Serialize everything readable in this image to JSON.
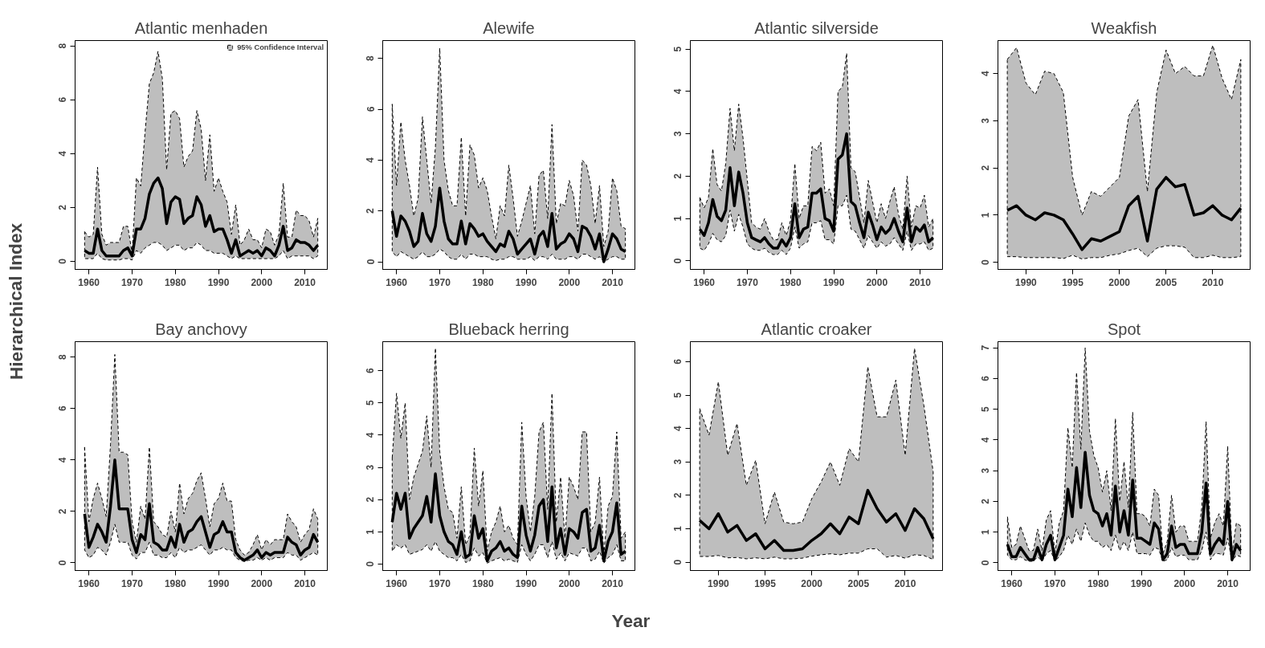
{
  "chart_data": [
    {
      "type": "line",
      "title": "Atlantic menhaden",
      "ylabel": "Hierarchical Index",
      "legend": "top right",
      "grid": false,
      "x": [
        1959,
        1960,
        1961,
        1962,
        1963,
        1964,
        1965,
        1966,
        1967,
        1968,
        1969,
        1970,
        1971,
        1972,
        1973,
        1974,
        1975,
        1976,
        1977,
        1978,
        1979,
        1980,
        1981,
        1982,
        1983,
        1984,
        1985,
        1986,
        1987,
        1988,
        1989,
        1990,
        1991,
        1992,
        1993,
        1994,
        1995,
        1996,
        1997,
        1998,
        1999,
        2000,
        2001,
        2002,
        2003,
        2004,
        2005,
        2006,
        2007,
        2008,
        2009,
        2010,
        2011,
        2012,
        2013
      ],
      "xlim": [
        1956.8,
        2015.2
      ],
      "xticks": [
        1960,
        1970,
        1980,
        1990,
        2000,
        2010
      ],
      "ylim": [
        -0.3,
        8.2
      ],
      "yticks": [
        0,
        2,
        4,
        6,
        8
      ],
      "series": [
        {
          "name": "95% Confidence Interval",
          "color": "#000000",
          "values": [
            0.4,
            0.3,
            0.3,
            1.2,
            0.4,
            0.2,
            0.2,
            0.2,
            0.2,
            0.4,
            0.5,
            0.2,
            1.2,
            1.2,
            1.6,
            2.5,
            2.9,
            3.1,
            2.7,
            1.4,
            2.2,
            2.4,
            2.3,
            1.4,
            1.6,
            1.7,
            2.4,
            2.1,
            1.3,
            1.7,
            1.1,
            1.2,
            1.2,
            0.8,
            0.3,
            0.8,
            0.2,
            0.3,
            0.4,
            0.3,
            0.4,
            0.2,
            0.5,
            0.4,
            0.2,
            0.6,
            1.3,
            0.4,
            0.5,
            0.8,
            0.7,
            0.7,
            0.6,
            0.4,
            0.6
          ],
          "upper": [
            1.1,
            0.9,
            1.0,
            3.5,
            1.0,
            0.6,
            0.7,
            0.7,
            0.7,
            1.3,
            1.3,
            0.3,
            3.1,
            2.8,
            4.8,
            6.6,
            7.0,
            7.8,
            6.8,
            3.4,
            5.5,
            5.6,
            5.3,
            3.5,
            3.9,
            4.1,
            5.6,
            4.9,
            3.0,
            4.7,
            2.6,
            3.1,
            2.6,
            2.2,
            1.0,
            2.1,
            0.6,
            0.8,
            1.2,
            0.8,
            0.8,
            0.5,
            1.2,
            1.1,
            0.6,
            1.0,
            2.9,
            0.9,
            0.9,
            1.9,
            1.7,
            1.7,
            1.5,
            0.9,
            1.6
          ],
          "lower": [
            0.1,
            0.1,
            0.1,
            0.3,
            0.1,
            0.05,
            0.05,
            0.05,
            0.05,
            0.1,
            0.1,
            0.05,
            0.4,
            0.3,
            0.5,
            0.6,
            0.7,
            0.7,
            0.6,
            0.4,
            0.5,
            0.6,
            0.6,
            0.4,
            0.5,
            0.5,
            0.7,
            0.6,
            0.4,
            0.4,
            0.3,
            0.3,
            0.3,
            0.2,
            0.1,
            0.2,
            0.1,
            0.1,
            0.1,
            0.1,
            0.1,
            0.1,
            0.1,
            0.1,
            0.1,
            0.2,
            0.4,
            0.1,
            0.2,
            0.2,
            0.2,
            0.2,
            0.2,
            0.1,
            0.2
          ]
        }
      ]
    },
    {
      "type": "line",
      "title": "Alewife",
      "grid": false,
      "x": [
        1959,
        1960,
        1961,
        1962,
        1963,
        1964,
        1965,
        1966,
        1967,
        1968,
        1969,
        1970,
        1971,
        1972,
        1973,
        1974,
        1975,
        1976,
        1977,
        1978,
        1979,
        1980,
        1981,
        1982,
        1983,
        1984,
        1985,
        1986,
        1987,
        1988,
        1989,
        1990,
        1991,
        1992,
        1993,
        1994,
        1995,
        1996,
        1997,
        1998,
        1999,
        2000,
        2001,
        2002,
        2003,
        2004,
        2005,
        2006,
        2007,
        2008,
        2009,
        2010,
        2011,
        2012,
        2013
      ],
      "xlim": [
        1956.8,
        2015.2
      ],
      "xticks": [
        1960,
        1970,
        1980,
        1990,
        2000,
        2010
      ],
      "ylim": [
        -0.3,
        8.7
      ],
      "yticks": [
        0,
        2,
        4,
        6,
        8
      ],
      "series": [
        {
          "color": "#000000",
          "values": [
            2.0,
            1.0,
            1.8,
            1.6,
            1.2,
            0.6,
            0.8,
            1.9,
            1.1,
            0.8,
            1.4,
            2.9,
            1.6,
            0.9,
            0.7,
            0.7,
            1.6,
            0.7,
            1.5,
            1.3,
            1.0,
            1.1,
            0.8,
            0.6,
            0.4,
            0.7,
            0.6,
            1.2,
            0.9,
            0.3,
            0.5,
            0.7,
            0.9,
            0.3,
            1.0,
            1.2,
            0.6,
            1.9,
            0.5,
            0.7,
            0.8,
            1.1,
            0.9,
            0.4,
            1.4,
            1.3,
            1.0,
            0.5,
            1.1,
            0.0,
            0.5,
            1.1,
            0.9,
            0.5,
            0.4
          ],
          "upper": [
            6.2,
            3.0,
            5.5,
            4.0,
            3.0,
            1.8,
            2.5,
            5.7,
            4.0,
            2.3,
            4.5,
            8.4,
            4.0,
            2.8,
            2.2,
            2.2,
            4.9,
            1.8,
            4.6,
            4.2,
            2.9,
            3.3,
            2.8,
            1.8,
            0.9,
            2.2,
            1.8,
            3.8,
            2.5,
            1.0,
            1.6,
            2.3,
            3.0,
            1.1,
            3.4,
            3.6,
            1.7,
            5.4,
            1.5,
            2.3,
            2.2,
            3.2,
            2.6,
            1.2,
            4.0,
            3.8,
            3.0,
            1.5,
            3.0,
            0.6,
            1.2,
            3.3,
            2.8,
            1.4,
            1.3
          ],
          "lower": [
            0.4,
            0.2,
            0.4,
            0.3,
            0.2,
            0.1,
            0.2,
            0.4,
            0.2,
            0.2,
            0.3,
            0.5,
            0.4,
            0.2,
            0.1,
            0.1,
            0.3,
            0.1,
            0.3,
            0.3,
            0.2,
            0.2,
            0.2,
            0.1,
            0.05,
            0.1,
            0.1,
            0.2,
            0.2,
            0.1,
            0.1,
            0.1,
            0.2,
            0.05,
            0.2,
            0.2,
            0.1,
            0.3,
            0.1,
            0.1,
            0.1,
            0.2,
            0.2,
            0.1,
            0.3,
            0.3,
            0.2,
            0.1,
            0.2,
            0.0,
            0.1,
            0.2,
            0.2,
            0.1,
            0.1
          ]
        }
      ]
    },
    {
      "type": "line",
      "title": "Atlantic silverside",
      "grid": false,
      "x": [
        1959,
        1960,
        1961,
        1962,
        1963,
        1964,
        1965,
        1966,
        1967,
        1968,
        1969,
        1970,
        1971,
        1972,
        1973,
        1974,
        1975,
        1976,
        1977,
        1978,
        1979,
        1980,
        1981,
        1982,
        1983,
        1984,
        1985,
        1986,
        1987,
        1988,
        1989,
        1990,
        1991,
        1992,
        1993,
        1994,
        1995,
        1996,
        1997,
        1998,
        1999,
        2000,
        2001,
        2002,
        2003,
        2004,
        2005,
        2006,
        2007,
        2008,
        2009,
        2010,
        2011,
        2012,
        2013
      ],
      "xlim": [
        1956.8,
        2015.2
      ],
      "xticks": [
        1960,
        1970,
        1980,
        1990,
        2000,
        2010
      ],
      "ylim": [
        -0.2,
        5.2
      ],
      "yticks": [
        0,
        1,
        2,
        3,
        4,
        5
      ],
      "series": [
        {
          "color": "#000000",
          "values": [
            0.75,
            0.6,
            0.9,
            1.45,
            1.05,
            0.95,
            1.2,
            2.2,
            1.3,
            2.1,
            1.6,
            0.9,
            0.55,
            0.5,
            0.45,
            0.55,
            0.4,
            0.3,
            0.3,
            0.5,
            0.35,
            0.55,
            1.35,
            0.55,
            0.75,
            0.8,
            1.6,
            1.6,
            1.7,
            1.0,
            0.95,
            0.7,
            2.4,
            2.5,
            3.0,
            1.4,
            1.3,
            0.9,
            0.55,
            1.15,
            0.85,
            0.5,
            0.8,
            0.65,
            0.75,
            1.0,
            0.7,
            0.45,
            1.25,
            0.45,
            0.8,
            0.7,
            0.85,
            0.45,
            0.55
          ],
          "upper": [
            1.5,
            1.25,
            1.5,
            2.65,
            1.8,
            1.65,
            2.3,
            3.6,
            2.6,
            3.7,
            2.9,
            1.9,
            0.9,
            0.8,
            0.75,
            1.0,
            0.7,
            0.5,
            0.5,
            0.9,
            0.6,
            0.95,
            2.3,
            1.0,
            1.3,
            1.3,
            2.7,
            2.6,
            2.8,
            1.6,
            1.7,
            1.3,
            4.0,
            4.1,
            4.9,
            2.2,
            2.1,
            1.5,
            0.9,
            1.9,
            1.4,
            0.9,
            1.35,
            1.0,
            1.4,
            1.75,
            1.1,
            0.75,
            2.0,
            0.8,
            1.3,
            1.25,
            1.55,
            0.8,
            1.0
          ],
          "lower": [
            0.3,
            0.25,
            0.4,
            0.65,
            0.5,
            0.45,
            0.6,
            1.2,
            0.7,
            1.1,
            0.8,
            0.4,
            0.3,
            0.25,
            0.25,
            0.3,
            0.2,
            0.15,
            0.15,
            0.25,
            0.15,
            0.3,
            0.8,
            0.3,
            0.4,
            0.45,
            0.9,
            0.9,
            0.95,
            0.5,
            0.5,
            0.4,
            1.3,
            1.3,
            1.55,
            0.75,
            0.7,
            0.5,
            0.3,
            0.6,
            0.45,
            0.3,
            0.45,
            0.35,
            0.4,
            0.55,
            0.4,
            0.25,
            0.7,
            0.25,
            0.4,
            0.4,
            0.45,
            0.25,
            0.3
          ]
        }
      ]
    },
    {
      "type": "line",
      "title": "Weakfish",
      "grid": false,
      "x": [
        1988,
        1989,
        1990,
        1991,
        1992,
        1993,
        1994,
        1995,
        1996,
        1997,
        1998,
        1999,
        2000,
        2001,
        2002,
        2003,
        2004,
        2005,
        2006,
        2007,
        2008,
        2009,
        2010,
        2011,
        2012,
        2013
      ],
      "xlim": [
        1987,
        2014
      ],
      "xticks": [
        1990,
        1995,
        2000,
        2005,
        2010
      ],
      "ylim": [
        -0.15,
        4.7
      ],
      "yticks": [
        0,
        1,
        2,
        3,
        4
      ],
      "series": [
        {
          "color": "#000000",
          "values": [
            1.1,
            1.2,
            1.0,
            0.9,
            1.05,
            1.0,
            0.9,
            0.6,
            0.27,
            0.5,
            0.45,
            0.55,
            0.65,
            1.2,
            1.4,
            0.45,
            1.55,
            1.8,
            1.6,
            1.65,
            1.0,
            1.05,
            1.2,
            1.0,
            0.9,
            1.15
          ],
          "upper": [
            4.3,
            4.55,
            3.8,
            3.55,
            4.05,
            4.0,
            3.6,
            1.8,
            1.0,
            1.5,
            1.4,
            1.6,
            1.8,
            3.1,
            3.45,
            1.5,
            3.6,
            4.5,
            4.0,
            4.15,
            3.95,
            3.95,
            4.6,
            3.9,
            3.45,
            4.3
          ],
          "lower": [
            0.12,
            0.12,
            0.1,
            0.1,
            0.1,
            0.1,
            0.08,
            0.15,
            0.07,
            0.1,
            0.1,
            0.15,
            0.18,
            0.25,
            0.3,
            0.12,
            0.3,
            0.35,
            0.35,
            0.32,
            0.1,
            0.1,
            0.15,
            0.1,
            0.1,
            0.12
          ]
        }
      ]
    },
    {
      "type": "line",
      "title": "Bay anchovy",
      "grid": false,
      "x": [
        1959,
        1960,
        1961,
        1962,
        1963,
        1964,
        1965,
        1966,
        1967,
        1968,
        1969,
        1970,
        1971,
        1972,
        1973,
        1974,
        1975,
        1976,
        1977,
        1978,
        1979,
        1980,
        1981,
        1982,
        1983,
        1984,
        1985,
        1986,
        1987,
        1988,
        1989,
        1990,
        1991,
        1992,
        1993,
        1994,
        1995,
        1996,
        1997,
        1998,
        1999,
        2000,
        2001,
        2002,
        2003,
        2004,
        2005,
        2006,
        2007,
        2008,
        2009,
        2010,
        2011,
        2012,
        2013
      ],
      "xlim": [
        1956.8,
        2015.2
      ],
      "xticks": [
        1960,
        1970,
        1980,
        1990,
        2000,
        2010
      ],
      "ylim": [
        -0.3,
        8.6
      ],
      "yticks": [
        0,
        2,
        4,
        6,
        8
      ],
      "series": [
        {
          "color": "#000000",
          "values": [
            1.9,
            0.6,
            1.0,
            1.5,
            1.2,
            0.8,
            2.2,
            4.0,
            2.1,
            2.1,
            2.1,
            0.9,
            0.4,
            1.1,
            0.9,
            2.3,
            0.8,
            0.7,
            0.5,
            0.5,
            1.0,
            0.6,
            1.5,
            0.8,
            1.2,
            1.3,
            1.6,
            1.8,
            1.2,
            0.6,
            1.1,
            1.2,
            1.6,
            1.2,
            1.2,
            0.4,
            0.2,
            0.1,
            0.2,
            0.3,
            0.5,
            0.2,
            0.4,
            0.3,
            0.4,
            0.4,
            0.4,
            1.0,
            0.8,
            0.7,
            0.3,
            0.5,
            0.6,
            1.1,
            0.8
          ],
          "upper": [
            4.5,
            1.6,
            2.5,
            3.1,
            2.5,
            1.8,
            4.6,
            8.1,
            4.3,
            4.3,
            4.2,
            1.6,
            0.8,
            2.2,
            1.7,
            4.5,
            1.6,
            1.4,
            1.1,
            1.0,
            2.0,
            1.2,
            3.1,
            1.9,
            2.5,
            2.7,
            3.2,
            3.5,
            2.5,
            1.4,
            2.3,
            2.5,
            3.1,
            2.4,
            2.4,
            0.9,
            0.5,
            0.3,
            0.4,
            0.7,
            1.1,
            0.5,
            0.9,
            0.7,
            0.9,
            0.9,
            0.9,
            1.9,
            1.6,
            1.4,
            0.8,
            1.1,
            1.3,
            2.1,
            1.7
          ],
          "lower": [
            0.5,
            0.2,
            0.3,
            0.6,
            0.5,
            0.3,
            0.8,
            1.5,
            0.8,
            0.8,
            0.8,
            0.3,
            0.15,
            0.4,
            0.4,
            0.8,
            0.3,
            0.3,
            0.2,
            0.2,
            0.4,
            0.2,
            0.6,
            0.4,
            0.5,
            0.5,
            0.6,
            0.7,
            0.5,
            0.3,
            0.5,
            0.5,
            0.6,
            0.5,
            0.5,
            0.2,
            0.1,
            0.05,
            0.1,
            0.1,
            0.2,
            0.1,
            0.2,
            0.1,
            0.2,
            0.2,
            0.2,
            0.4,
            0.3,
            0.3,
            0.1,
            0.2,
            0.3,
            0.4,
            0.3
          ]
        }
      ]
    },
    {
      "type": "line",
      "title": "Blueback herring",
      "grid": false,
      "x": [
        1959,
        1960,
        1961,
        1962,
        1963,
        1964,
        1965,
        1966,
        1967,
        1968,
        1969,
        1970,
        1971,
        1972,
        1973,
        1974,
        1975,
        1976,
        1977,
        1978,
        1979,
        1980,
        1981,
        1982,
        1983,
        1984,
        1985,
        1986,
        1987,
        1988,
        1989,
        1990,
        1991,
        1992,
        1993,
        1994,
        1995,
        1996,
        1997,
        1998,
        1999,
        2000,
        2001,
        2002,
        2003,
        2004,
        2005,
        2006,
        2007,
        2008,
        2009,
        2010,
        2011,
        2012,
        2013
      ],
      "xlim": [
        1956.8,
        2015.2
      ],
      "xticks": [
        1960,
        1970,
        1980,
        1990,
        2000,
        2010
      ],
      "ylim": [
        -0.2,
        6.9
      ],
      "yticks": [
        0,
        1,
        2,
        3,
        4,
        5,
        6
      ],
      "series": [
        {
          "color": "#000000",
          "values": [
            1.3,
            2.2,
            1.7,
            2.2,
            0.8,
            1.1,
            1.3,
            1.5,
            2.1,
            1.3,
            2.8,
            1.5,
            1.0,
            0.7,
            0.6,
            0.3,
            1.0,
            0.2,
            0.3,
            1.5,
            0.8,
            1.1,
            0.1,
            0.4,
            0.5,
            0.7,
            0.4,
            0.5,
            0.3,
            0.2,
            1.8,
            0.9,
            0.4,
            0.9,
            1.8,
            2.0,
            0.7,
            2.4,
            0.5,
            1.1,
            0.3,
            1.1,
            1.0,
            0.8,
            1.6,
            1.7,
            0.4,
            0.5,
            1.2,
            0.1,
            0.7,
            1.0,
            1.9,
            0.3,
            0.4
          ],
          "upper": [
            3.3,
            5.3,
            3.9,
            5.0,
            2.0,
            2.7,
            3.1,
            3.5,
            4.6,
            3.0,
            6.7,
            3.5,
            2.4,
            1.7,
            1.6,
            0.8,
            2.4,
            0.6,
            0.9,
            3.6,
            1.8,
            2.9,
            0.4,
            1.0,
            1.3,
            1.8,
            1.0,
            1.2,
            0.8,
            0.6,
            4.4,
            2.1,
            1.0,
            2.1,
            4.1,
            4.4,
            1.7,
            5.3,
            1.3,
            2.7,
            0.8,
            2.7,
            2.4,
            2.0,
            4.1,
            4.1,
            1.0,
            1.3,
            2.7,
            0.3,
            1.8,
            2.1,
            4.1,
            0.8,
            1.0
          ],
          "lower": [
            0.4,
            0.6,
            0.5,
            0.6,
            0.3,
            0.35,
            0.4,
            0.45,
            0.6,
            0.4,
            0.7,
            0.4,
            0.3,
            0.2,
            0.2,
            0.1,
            0.3,
            0.05,
            0.1,
            0.5,
            0.25,
            0.35,
            0.03,
            0.1,
            0.15,
            0.2,
            0.1,
            0.15,
            0.1,
            0.05,
            0.6,
            0.3,
            0.1,
            0.3,
            0.6,
            0.6,
            0.2,
            0.7,
            0.15,
            0.35,
            0.1,
            0.35,
            0.3,
            0.25,
            0.5,
            0.5,
            0.1,
            0.15,
            0.4,
            0.03,
            0.2,
            0.3,
            0.6,
            0.1,
            0.1
          ]
        }
      ]
    },
    {
      "type": "line",
      "title": "Atlantic croaker",
      "xlabel": "Year",
      "grid": false,
      "x": [
        1988,
        1989,
        1990,
        1991,
        1992,
        1993,
        1994,
        1995,
        1996,
        1997,
        1998,
        1999,
        2000,
        2001,
        2002,
        2003,
        2004,
        2005,
        2006,
        2007,
        2008,
        2009,
        2010,
        2011,
        2012,
        2013
      ],
      "xlim": [
        1987,
        2014
      ],
      "xticks": [
        1990,
        1995,
        2000,
        2005,
        2010
      ],
      "ylim": [
        -0.25,
        6.6
      ],
      "yticks": [
        0,
        1,
        2,
        3,
        4,
        5,
        6
      ],
      "series": [
        {
          "color": "#000000",
          "values": [
            1.25,
            1.0,
            1.45,
            0.9,
            1.1,
            0.65,
            0.85,
            0.4,
            0.65,
            0.35,
            0.35,
            0.4,
            0.65,
            0.85,
            1.15,
            0.85,
            1.35,
            1.15,
            2.15,
            1.6,
            1.2,
            1.45,
            0.95,
            1.6,
            1.3,
            0.7
          ],
          "upper": [
            4.6,
            3.8,
            5.4,
            3.2,
            4.15,
            2.3,
            3.05,
            1.15,
            2.1,
            1.2,
            1.15,
            1.2,
            1.9,
            2.4,
            3.0,
            2.3,
            3.4,
            3.0,
            5.85,
            4.35,
            4.35,
            5.45,
            3.2,
            6.4,
            4.7,
            2.7
          ],
          "lower": [
            0.17,
            0.17,
            0.2,
            0.13,
            0.14,
            0.1,
            0.13,
            0.1,
            0.15,
            0.1,
            0.1,
            0.12,
            0.18,
            0.22,
            0.25,
            0.22,
            0.27,
            0.27,
            0.4,
            0.4,
            0.15,
            0.2,
            0.12,
            0.22,
            0.2,
            0.08
          ]
        }
      ]
    },
    {
      "type": "line",
      "title": "Spot",
      "grid": false,
      "x": [
        1959,
        1960,
        1961,
        1962,
        1963,
        1964,
        1965,
        1966,
        1967,
        1968,
        1969,
        1970,
        1971,
        1972,
        1973,
        1974,
        1975,
        1976,
        1977,
        1978,
        1979,
        1980,
        1981,
        1982,
        1983,
        1984,
        1985,
        1986,
        1987,
        1988,
        1989,
        1990,
        1991,
        1992,
        1993,
        1994,
        1995,
        1996,
        1997,
        1998,
        1999,
        2000,
        2001,
        2002,
        2003,
        2004,
        2005,
        2006,
        2007,
        2008,
        2009,
        2010,
        2011,
        2012,
        2013
      ],
      "xlim": [
        1956.8,
        2015.2
      ],
      "xticks": [
        1960,
        1970,
        1980,
        1990,
        2000,
        2010
      ],
      "ylim": [
        -0.25,
        7.2
      ],
      "yticks": [
        0,
        1,
        2,
        3,
        4,
        5,
        6,
        7
      ],
      "series": [
        {
          "color": "#000000",
          "values": [
            0.6,
            0.2,
            0.2,
            0.5,
            0.3,
            0.1,
            0.1,
            0.5,
            0.1,
            0.6,
            0.9,
            0.1,
            0.5,
            0.9,
            2.4,
            1.5,
            3.1,
            1.8,
            3.6,
            2.2,
            1.7,
            1.6,
            1.2,
            1.6,
            0.9,
            2.5,
            1.0,
            1.7,
            0.9,
            2.7,
            0.8,
            0.8,
            0.7,
            0.6,
            1.3,
            1.1,
            0.1,
            0.3,
            1.2,
            0.5,
            0.6,
            0.6,
            0.3,
            0.3,
            0.3,
            1.0,
            2.6,
            0.3,
            0.6,
            0.8,
            0.6,
            2.0,
            0.1,
            0.6,
            0.4
          ],
          "upper": [
            1.5,
            0.5,
            0.6,
            1.2,
            0.8,
            0.4,
            0.4,
            1.1,
            0.4,
            1.4,
            1.7,
            0.3,
            1.3,
            1.7,
            4.4,
            3.1,
            6.2,
            3.7,
            7.0,
            4.3,
            3.5,
            3.1,
            2.3,
            3.0,
            1.7,
            4.7,
            2.0,
            3.3,
            1.8,
            4.9,
            1.6,
            1.6,
            1.5,
            1.2,
            2.4,
            2.2,
            0.3,
            0.7,
            2.2,
            1.0,
            1.2,
            1.2,
            0.7,
            0.7,
            0.7,
            1.8,
            4.6,
            0.8,
            1.3,
            1.6,
            1.2,
            3.8,
            0.3,
            1.3,
            1.2
          ],
          "lower": [
            0.25,
            0.1,
            0.1,
            0.2,
            0.1,
            0.05,
            0.05,
            0.2,
            0.05,
            0.3,
            0.4,
            0.05,
            0.2,
            0.4,
            0.9,
            0.6,
            1.1,
            0.7,
            1.3,
            0.9,
            0.7,
            0.7,
            0.5,
            0.6,
            0.4,
            0.9,
            0.4,
            0.7,
            0.4,
            1.0,
            0.3,
            0.3,
            0.3,
            0.25,
            0.5,
            0.45,
            0.05,
            0.1,
            0.5,
            0.2,
            0.25,
            0.25,
            0.1,
            0.1,
            0.1,
            0.4,
            1.0,
            0.1,
            0.3,
            0.3,
            0.25,
            0.8,
            0.05,
            0.25,
            0.2
          ]
        }
      ]
    }
  ]
}
